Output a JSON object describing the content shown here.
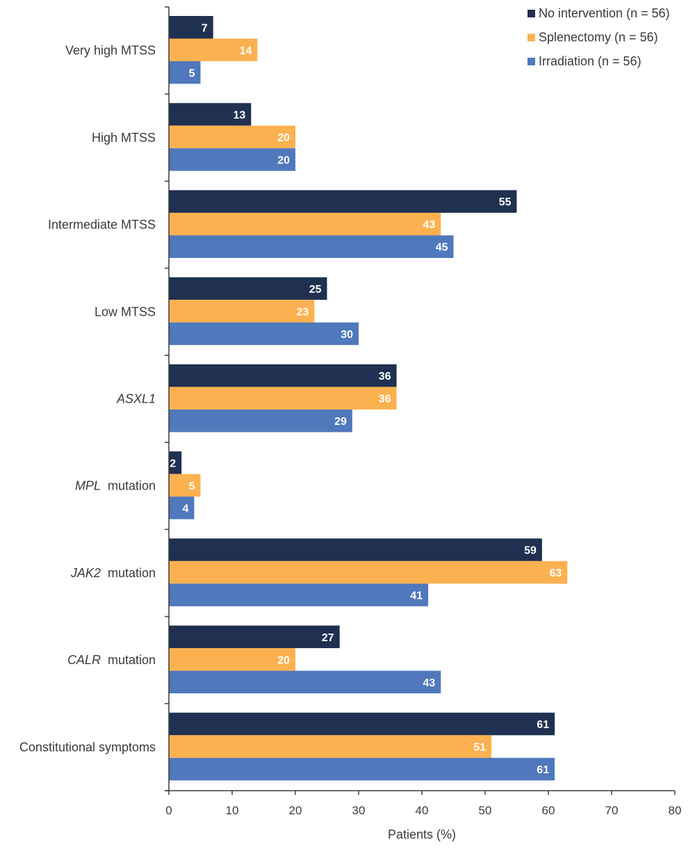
{
  "chart_data": {
    "type": "bar",
    "orientation": "horizontal",
    "title": "",
    "xlabel": "Patients (%)",
    "ylabel": "",
    "xlim": [
      0,
      80
    ],
    "xticks": [
      0,
      10,
      20,
      30,
      40,
      50,
      60,
      70,
      80
    ],
    "grid": false,
    "legend_position": "top-right",
    "categories": [
      {
        "label": "Very high MTSS",
        "italic": "",
        "rest": "Very high MTSS"
      },
      {
        "label": "High MTSS",
        "italic": "",
        "rest": "High MTSS"
      },
      {
        "label": "Intermediate MTSS",
        "italic": "",
        "rest": "Intermediate MTSS"
      },
      {
        "label": "Low MTSS",
        "italic": "",
        "rest": "Low MTSS"
      },
      {
        "label": "ASXL1",
        "italic": "ASXL1",
        "rest": ""
      },
      {
        "label": "MPL mutation",
        "italic": "MPL",
        "rest": " mutation"
      },
      {
        "label": "JAK2 mutation",
        "italic": "JAK2",
        "rest": " mutation"
      },
      {
        "label": "CALR mutation",
        "italic": "CALR",
        "rest": " mutation"
      },
      {
        "label": "Constitutional symptoms",
        "italic": "",
        "rest": "Constitutional symptoms"
      }
    ],
    "series": [
      {
        "name": "No intervention (n = 56)",
        "color": "#1f3050",
        "values": [
          7,
          13,
          55,
          25,
          36,
          2,
          59,
          27,
          61
        ]
      },
      {
        "name": "Splenectomy (n = 56)",
        "color": "#fbb150",
        "values": [
          14,
          20,
          43,
          23,
          36,
          5,
          63,
          20,
          51
        ]
      },
      {
        "name": "Irradiation (n = 56)",
        "color": "#5078bc",
        "values": [
          5,
          20,
          45,
          30,
          29,
          4,
          41,
          43,
          61
        ]
      }
    ]
  }
}
